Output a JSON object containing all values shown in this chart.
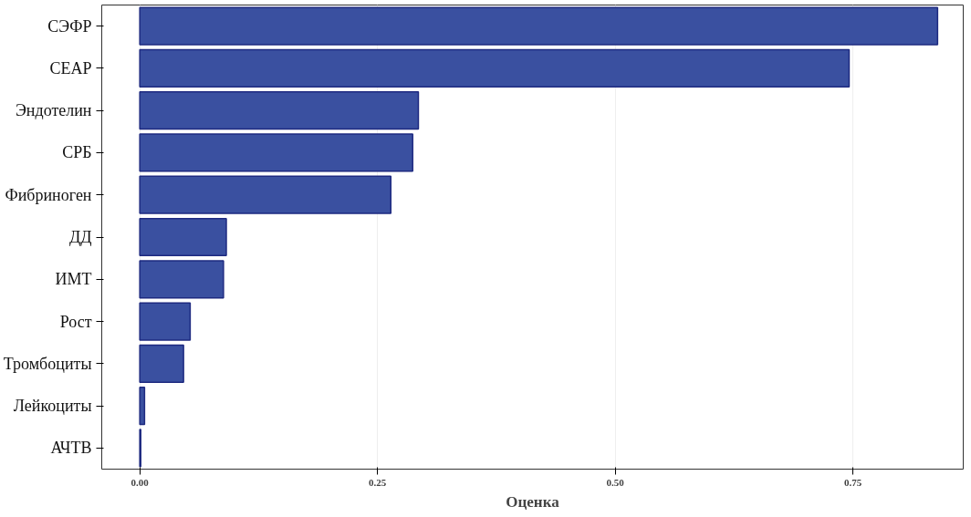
{
  "chart_data": {
    "type": "bar",
    "orientation": "horizontal",
    "xlabel": "Оценка",
    "categories": [
      "СЭФР",
      "СЕАР",
      "Эндотелин",
      "СРБ",
      "Фибриноген",
      "ДД",
      "ИМТ",
      "Рост",
      "Тромбоциты",
      "Лейкоциты",
      "АЧТВ"
    ],
    "values": [
      0.839,
      0.746,
      0.293,
      0.287,
      0.264,
      0.091,
      0.088,
      0.053,
      0.046,
      0.005,
      0.001
    ],
    "color": "#3a50a0",
    "xlim": [
      -0.04,
      0.866
    ],
    "xticks": [
      {
        "value": 0,
        "label": "0.00"
      },
      {
        "value": 0.25,
        "label": "0.25"
      },
      {
        "value": 0.5,
        "label": "0.50"
      },
      {
        "value": 0.75,
        "label": "0.75"
      }
    ],
    "grid": "x"
  }
}
